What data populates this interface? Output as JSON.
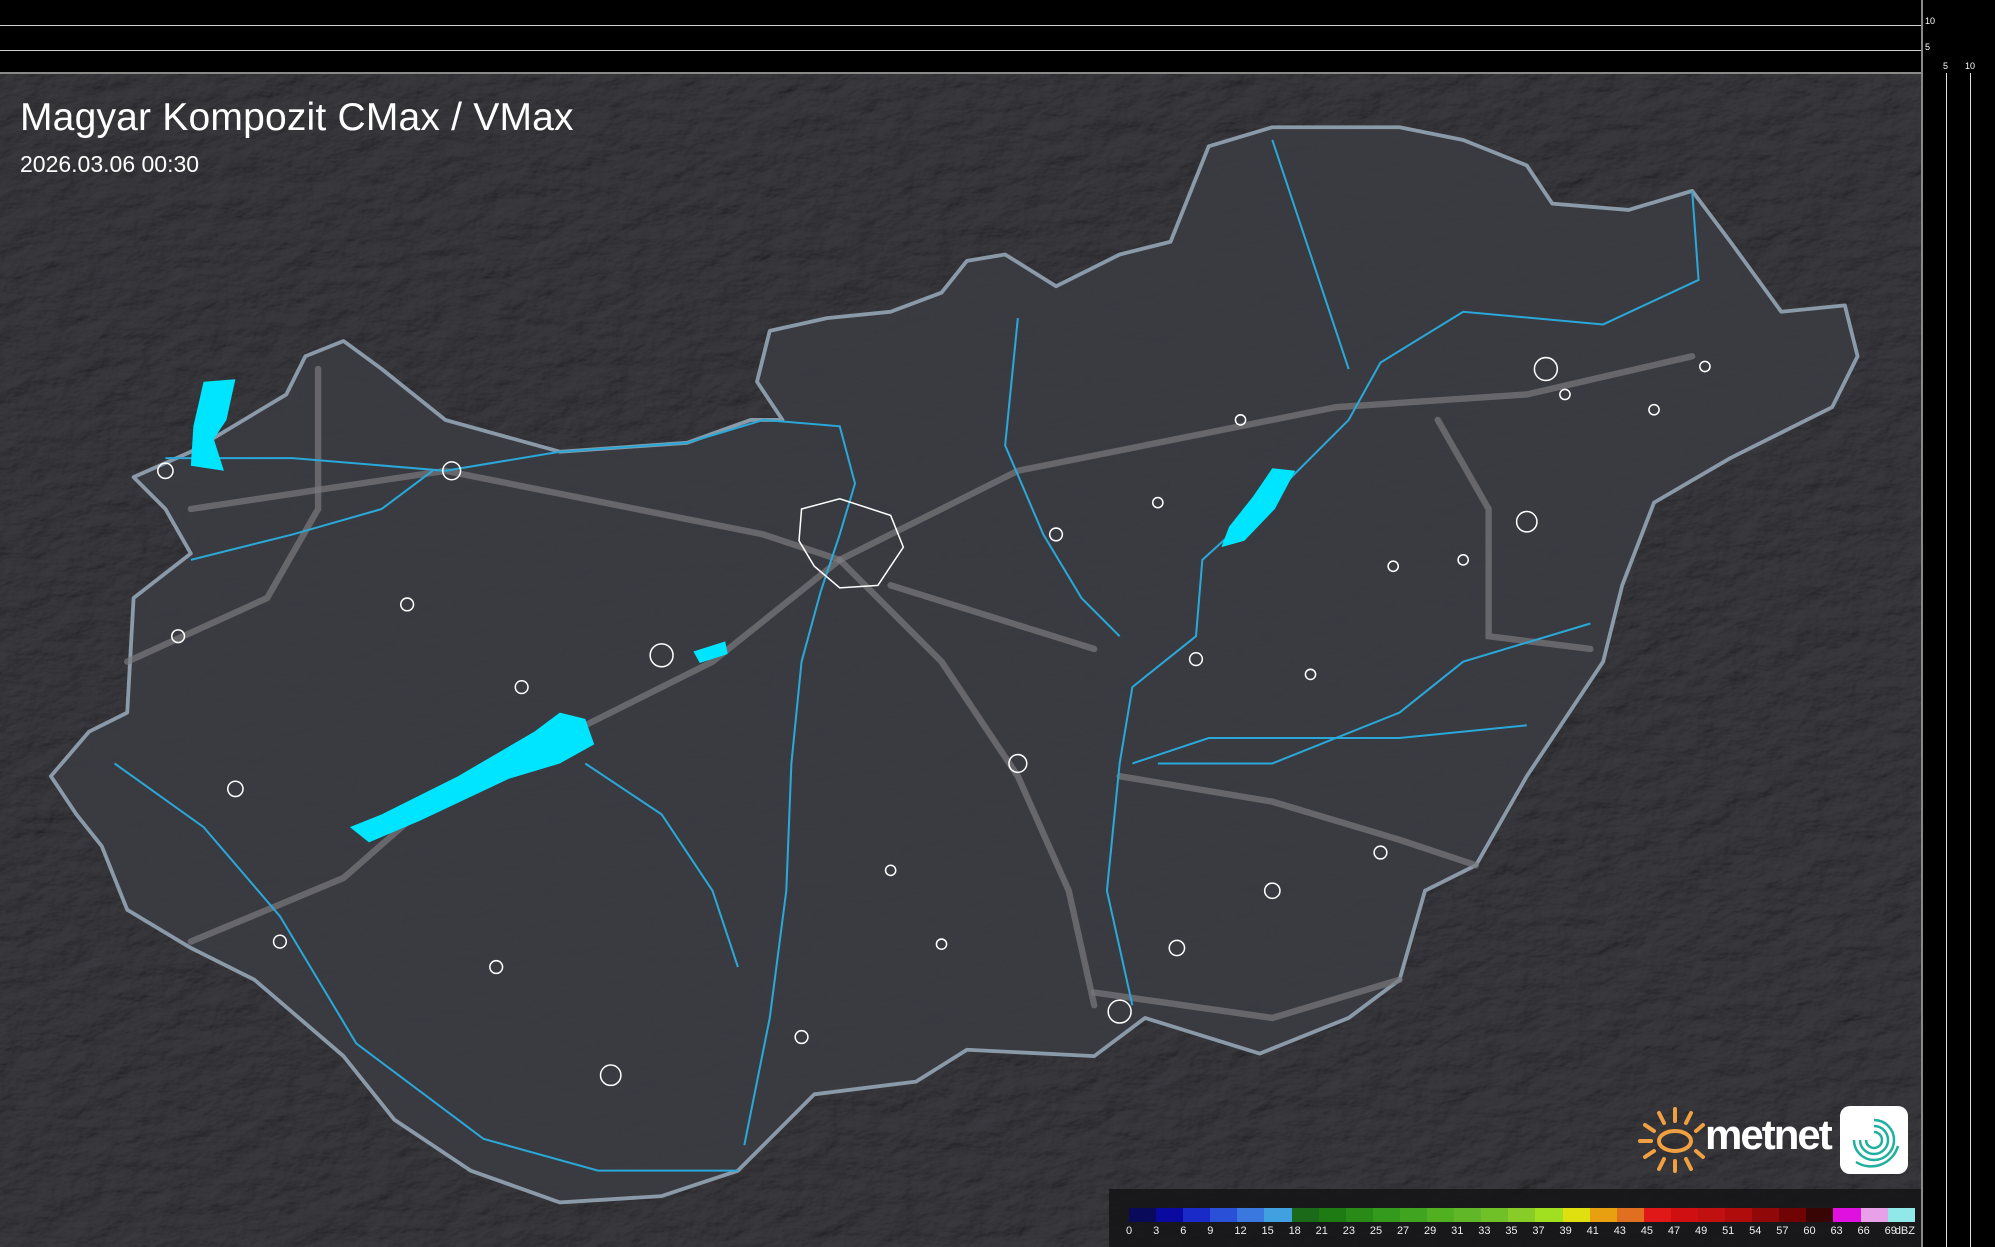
{
  "title": "Magyar Kompozit CMax / VMax",
  "timestamp": "2026.03.06 00:30",
  "scale": {
    "vertical_labels": [
      "10",
      "5"
    ],
    "horizontal_labels": [
      "5",
      "10"
    ]
  },
  "legend": {
    "unit": "dBZ",
    "labels": [
      "0",
      "3",
      "6",
      "9",
      "12",
      "15",
      "18",
      "21",
      "23",
      "25",
      "27",
      "29",
      "31",
      "33",
      "35",
      "37",
      "39",
      "41",
      "43",
      "45",
      "47",
      "49",
      "51",
      "54",
      "57",
      "60",
      "63",
      "66",
      "69"
    ],
    "colors": [
      "#0a0a5a",
      "#0a0aa0",
      "#1a2ac8",
      "#2a50d8",
      "#3a78e0",
      "#40a0e0",
      "#1a6a1a",
      "#1e7a12",
      "#2a8a18",
      "#349a1e",
      "#40a420",
      "#50b020",
      "#60b828",
      "#70c028",
      "#88cc28",
      "#a0e020",
      "#e0e010",
      "#e8a010",
      "#e07020",
      "#e01818",
      "#d01010",
      "#c01010",
      "#b00c0c",
      "#900808",
      "#700404",
      "#380404",
      "#e010e0",
      "#e8a0e8",
      "#90e8e8"
    ]
  },
  "logo": {
    "brand": "metnet",
    "sun_color": "#f0a040",
    "swirl_color": "#20b0a0"
  },
  "colors": {
    "background": "#2a2a2e",
    "country_fill": "#3b3b42",
    "border": "#8a9aa8",
    "water": "#00e5ff",
    "rivers": "#2aa8d8",
    "roads": "#777777",
    "settlements": "#ffffff"
  }
}
